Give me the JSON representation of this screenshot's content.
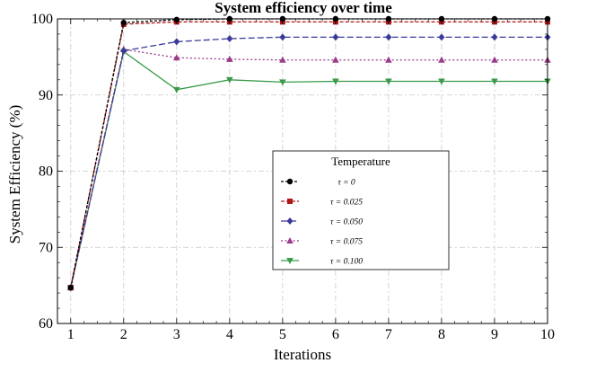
{
  "chart_data": {
    "type": "line",
    "title": "System efficiency over time",
    "xlabel": "Iterations",
    "ylabel": "System Efficiency (%)",
    "xlim": [
      0.75,
      10
    ],
    "ylim": [
      60,
      100
    ],
    "xticks": [
      1,
      2,
      3,
      4,
      5,
      6,
      7,
      8,
      9,
      10
    ],
    "yticks": [
      60,
      70,
      80,
      90,
      100
    ],
    "grid": true,
    "legend": {
      "title": "Temperature",
      "placement": "center-right"
    },
    "x": [
      1,
      2,
      3,
      4,
      5,
      6,
      7,
      8,
      9,
      10
    ],
    "series": [
      {
        "name": "τ = 0",
        "color": "#000000",
        "marker": "circle",
        "values": [
          64.7,
          99.5,
          99.9,
          100.0,
          100.0,
          100.0,
          100.0,
          100.0,
          100.0,
          100.0
        ]
      },
      {
        "name": "τ = 0.025",
        "color": "#b01818",
        "marker": "square",
        "values": [
          64.7,
          99.3,
          99.6,
          99.6,
          99.6,
          99.6,
          99.6,
          99.6,
          99.6,
          99.6
        ]
      },
      {
        "name": "τ = 0.050",
        "color": "#3a3a9a",
        "marker": "diamond",
        "values": [
          64.7,
          95.8,
          97.0,
          97.4,
          97.6,
          97.6,
          97.6,
          97.6,
          97.6,
          97.6
        ]
      },
      {
        "name": "τ = 0.075",
        "color": "#9a3a8a",
        "marker": "triangle-up",
        "values": [
          64.7,
          96.0,
          94.9,
          94.7,
          94.6,
          94.6,
          94.6,
          94.6,
          94.6,
          94.6
        ]
      },
      {
        "name": "τ = 0.100",
        "color": "#3a9a4a",
        "marker": "triangle-down",
        "values": [
          64.7,
          95.7,
          90.7,
          92.0,
          91.7,
          91.8,
          91.8,
          91.8,
          91.8,
          91.8
        ]
      }
    ]
  }
}
